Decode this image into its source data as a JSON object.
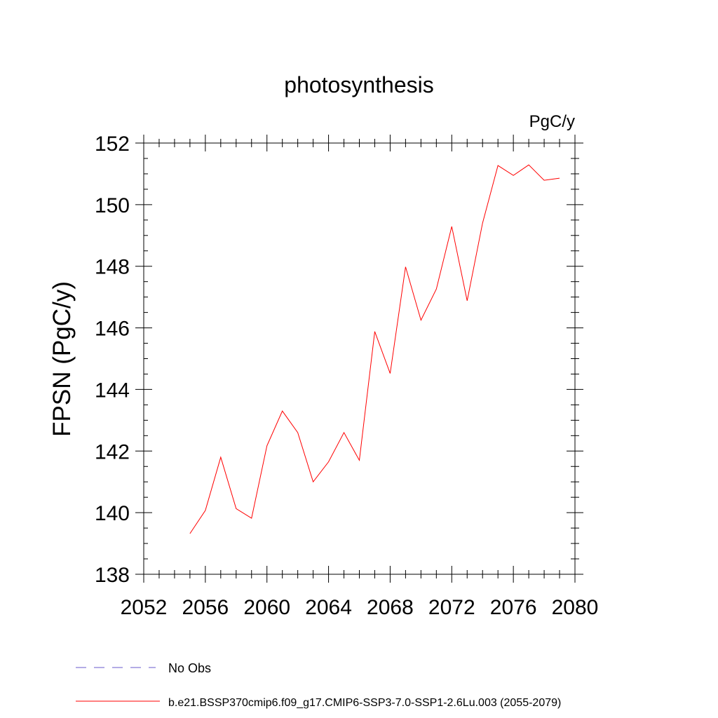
{
  "chart_data": {
    "type": "line",
    "title": "photosynthesis",
    "units_label": "PgC/y",
    "ylabel": "FPSN  (PgC/y)",
    "xlabel": "",
    "xlim": [
      2052,
      2080
    ],
    "ylim": [
      138,
      152
    ],
    "x_ticks": [
      "2052",
      "2056",
      "2060",
      "2064",
      "2068",
      "2072",
      "2076",
      "2080"
    ],
    "y_ticks": [
      "138",
      "140",
      "142",
      "144",
      "146",
      "148",
      "150",
      "152"
    ],
    "legend_placement": "bottom-left, below plot",
    "legend": [
      {
        "label": "No Obs",
        "color": "#6a5acd",
        "style": "dashed"
      },
      {
        "label": "b.e21.BSSP370cmip6.f09_g17.CMIP6-SSP3-7.0-SSP1-2.6Lu.003 (2055-2079)",
        "color": "#ff0000",
        "style": "solid"
      }
    ],
    "series": [
      {
        "name": "b.e21.BSSP370cmip6.f09_g17.CMIP6-SSP3-7.0-SSP1-2.6Lu.003 (2055-2079)",
        "color": "#ff0000",
        "x": [
          2055,
          2056,
          2057,
          2058,
          2059,
          2060,
          2061,
          2062,
          2063,
          2064,
          2065,
          2066,
          2067,
          2068,
          2069,
          2070,
          2071,
          2072,
          2073,
          2074,
          2075,
          2076,
          2077,
          2078,
          2079
        ],
        "values": [
          139.32,
          140.07,
          141.8,
          140.13,
          139.82,
          142.17,
          143.3,
          142.6,
          141.0,
          141.65,
          142.6,
          141.7,
          145.88,
          144.52,
          147.98,
          146.25,
          147.26,
          149.29,
          146.88,
          149.4,
          151.27,
          150.95,
          151.29,
          150.79,
          150.86
        ]
      }
    ]
  }
}
